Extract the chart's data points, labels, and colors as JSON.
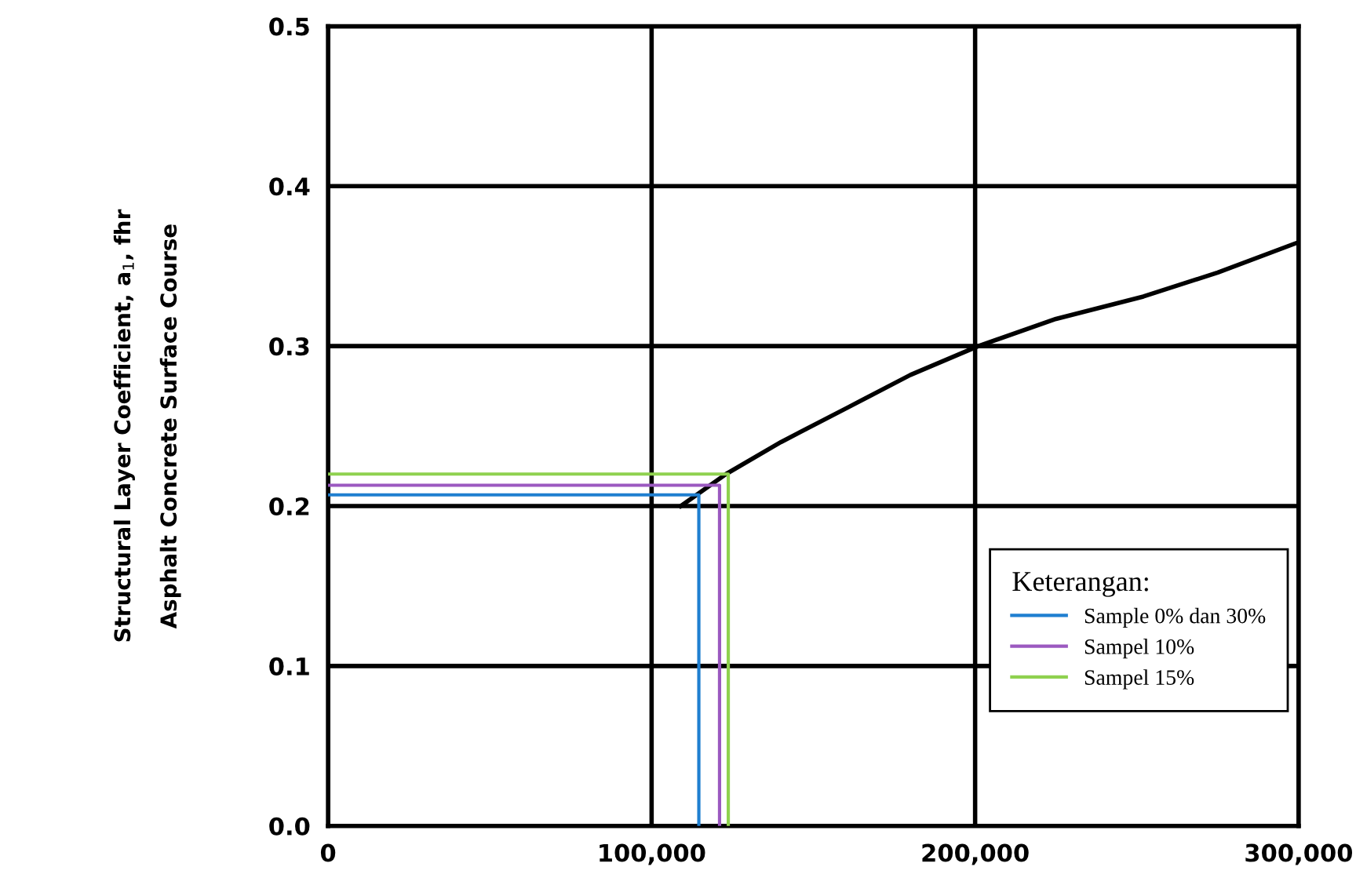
{
  "chart_data": {
    "type": "line",
    "ylabel": "Structural Layer Coefficient, a$_{1}$, fhr\nAsphalt Concrete Surface Course",
    "legend_title": "Keterangan:",
    "series": [
      {
        "color": "#000000",
        "x": [
          109000,
          123000,
          140000,
          161000,
          180000,
          201000,
          225000,
          252000,
          275000,
          300000
        ],
        "values": [
          0.2,
          0.22,
          0.24,
          0.262,
          0.282,
          0.3,
          0.317,
          0.331,
          0.346,
          0.365
        ]
      },
      {
        "name": "Sample 0% dan 30%",
        "color": "#1f7fd0",
        "x": [
          0,
          114600,
          114600
        ],
        "values": [
          0.207,
          0.207,
          0
        ]
      },
      {
        "name": "Sampel 10%",
        "color": "#9b59c0",
        "x": [
          0,
          121000,
          121000
        ],
        "values": [
          0.213,
          0.213,
          0
        ]
      },
      {
        "name": "Sampel 15%",
        "color": "#8fd14f",
        "x": [
          0,
          123700,
          123700
        ],
        "values": [
          0.22,
          0.22,
          0
        ]
      }
    ],
    "xlim": [
      0,
      300000
    ],
    "xticks": [
      {
        "value": 0,
        "label": "0"
      },
      {
        "value": 100000,
        "label": "100,000"
      },
      {
        "value": 200000,
        "label": "200,000"
      },
      {
        "value": 300000,
        "label": "300,000"
      }
    ],
    "ylim": [
      0,
      0.5
    ],
    "yticks": [
      {
        "value": 0,
        "label": "0.0"
      },
      {
        "value": 0.1,
        "label": "0.1"
      },
      {
        "value": 0.2,
        "label": "0.2"
      },
      {
        "value": 0.3,
        "label": "0.3"
      },
      {
        "value": 0.4,
        "label": "0.4"
      },
      {
        "value": 0.5,
        "label": "0.5"
      }
    ],
    "grid": true,
    "legend": "lower right",
    "marker": "none",
    "line_style": "solid"
  }
}
